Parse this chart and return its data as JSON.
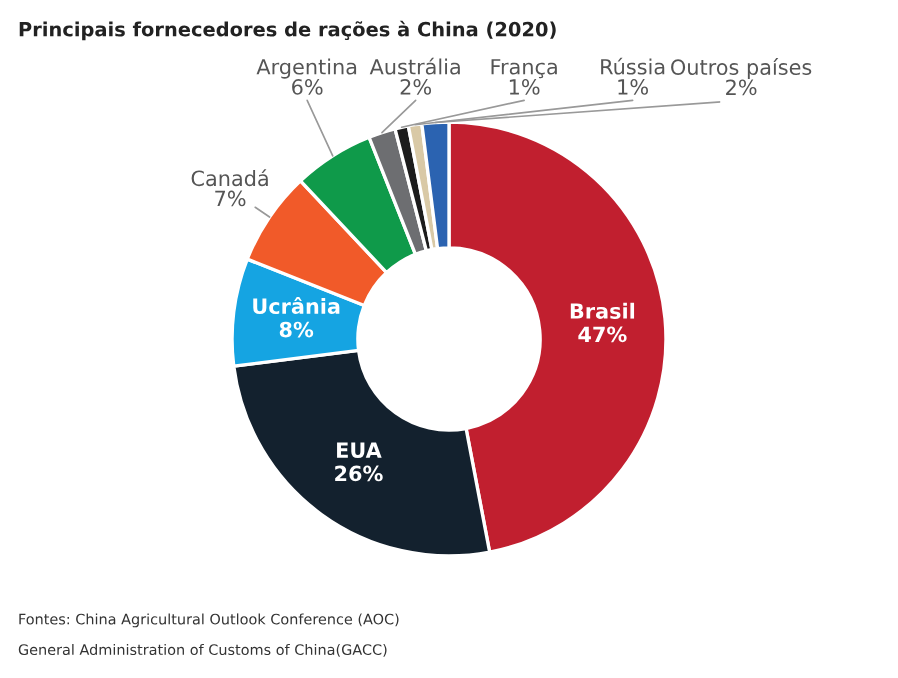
{
  "chart_data": {
    "type": "donut",
    "title": "Principais fornecedores de rações à China (2020)",
    "categories": [
      "Brasil",
      "EUA",
      "Ucrânia",
      "Canadá",
      "Argentina",
      "Austrália",
      "França",
      "Rússia",
      "Outros países"
    ],
    "values": [
      47,
      26,
      8,
      7,
      6,
      2,
      1,
      1,
      2
    ],
    "value_labels": [
      "47%",
      "26%",
      "8%",
      "7%",
      "6%",
      "2%",
      "1%",
      "1%",
      "2%"
    ],
    "colors": [
      "#c11f2f",
      "#13212e",
      "#15a4e2",
      "#f15a29",
      "#0f9a4a",
      "#6d6e71",
      "#1c1c1c",
      "#d9c9a6",
      "#2b63b1"
    ],
    "annotations": [
      "Fontes: China Agricultural Outlook Conference (AOC)",
      "General Administration of Customs of China(GACC)"
    ]
  }
}
